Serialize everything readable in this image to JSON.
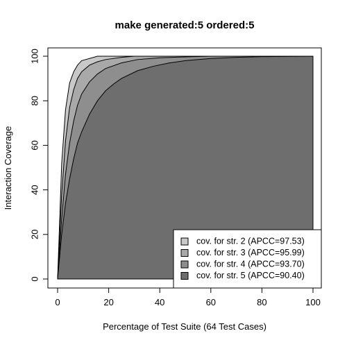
{
  "chart_data": {
    "type": "area",
    "title": "make generated:5 ordered:5",
    "xlabel": "Percentage of Test Suite (64 Test Cases)",
    "ylabel": "Interaction Coverage",
    "xlim": [
      0,
      100
    ],
    "ylim": [
      0,
      100
    ],
    "x_ticks": [
      "0",
      "20",
      "40",
      "60",
      "80",
      "100"
    ],
    "y_ticks": [
      "0",
      "20",
      "40",
      "60",
      "80",
      "100"
    ],
    "grid": false,
    "legend_position": "bottom-right",
    "series": [
      {
        "name": "cov. for str. 2 (APCC=97.53)",
        "color": "#c8c8c8",
        "x": [
          0,
          1.6,
          3.1,
          4.7,
          6.3,
          7.8,
          9.4,
          12.5,
          15.6,
          20,
          30,
          50,
          75,
          100
        ],
        "y": [
          0,
          52,
          76,
          88,
          93,
          96,
          98,
          99,
          100,
          100,
          100,
          100,
          100,
          100
        ]
      },
      {
        "name": "cov. for str. 3 (APCC=95.99)",
        "color": "#a9a9a9",
        "x": [
          0,
          1.6,
          3.1,
          4.7,
          6.3,
          7.8,
          9.4,
          12.5,
          15.6,
          18.8,
          25,
          30,
          40,
          50,
          75,
          100
        ],
        "y": [
          0,
          38,
          62,
          77,
          85,
          90,
          93,
          96,
          97.5,
          98.5,
          99.5,
          100,
          100,
          100,
          100,
          100
        ]
      },
      {
        "name": "cov. for str. 4 (APCC=93.70)",
        "color": "#8e8e8e",
        "x": [
          0,
          1.6,
          3.1,
          4.7,
          6.3,
          7.8,
          9.4,
          12.5,
          15.6,
          18.8,
          25,
          31.3,
          40,
          50,
          60,
          75,
          100
        ],
        "y": [
          0,
          27,
          47,
          61,
          71,
          78,
          83,
          88.5,
          92,
          94.5,
          97,
          98.5,
          99.3,
          99.7,
          100,
          100,
          100
        ]
      },
      {
        "name": "cov. for str. 5 (APCC=90.40)",
        "color": "#6e6e6e",
        "x": [
          0,
          1.6,
          3.1,
          4.7,
          6.3,
          7.8,
          9.4,
          12.5,
          15.6,
          18.8,
          21.9,
          25,
          31.3,
          37.5,
          43.8,
          50,
          60,
          70,
          80,
          100
        ],
        "y": [
          0,
          20,
          34,
          45,
          54,
          61,
          66,
          74,
          80,
          84.5,
          87.5,
          90,
          93.5,
          95.5,
          97,
          98,
          99,
          99.5,
          99.8,
          100
        ]
      }
    ]
  }
}
